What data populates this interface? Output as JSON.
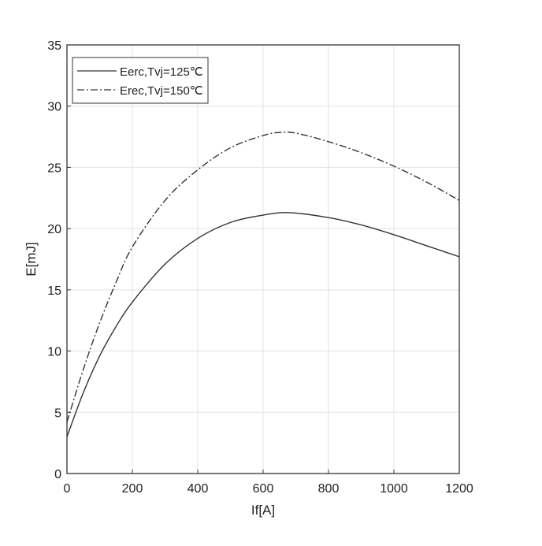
{
  "chart_data": {
    "type": "line",
    "title": "",
    "xlabel": "If[A]",
    "ylabel": "E[mJ]",
    "xlim": [
      0,
      1200
    ],
    "ylim": [
      0,
      35
    ],
    "xticks": [
      0,
      200,
      400,
      600,
      800,
      1000,
      1200
    ],
    "yticks": [
      0,
      5,
      10,
      15,
      20,
      25,
      30,
      35
    ],
    "grid": true,
    "legend_position": "top-left",
    "series": [
      {
        "name": "Eerc,Tvj=125℃",
        "style": "solid",
        "color": "#333333",
        "x": [
          0,
          50,
          100,
          150,
          200,
          300,
          400,
          500,
          600,
          680,
          800,
          900,
          1000,
          1100,
          1200
        ],
        "y": [
          3.0,
          6.6,
          9.6,
          12.0,
          14.0,
          17.1,
          19.2,
          20.5,
          21.1,
          21.3,
          20.9,
          20.3,
          19.5,
          18.6,
          17.7
        ]
      },
      {
        "name": "Erec,Tvj=150℃",
        "style": "dash-dot",
        "color": "#333333",
        "x": [
          0,
          50,
          100,
          150,
          200,
          300,
          400,
          500,
          600,
          650,
          700,
          800,
          900,
          1000,
          1100,
          1200
        ],
        "y": [
          4.2,
          8.5,
          12.3,
          15.6,
          18.5,
          22.3,
          24.8,
          26.6,
          27.6,
          27.85,
          27.8,
          27.1,
          26.2,
          25.1,
          23.8,
          22.3
        ]
      }
    ]
  }
}
